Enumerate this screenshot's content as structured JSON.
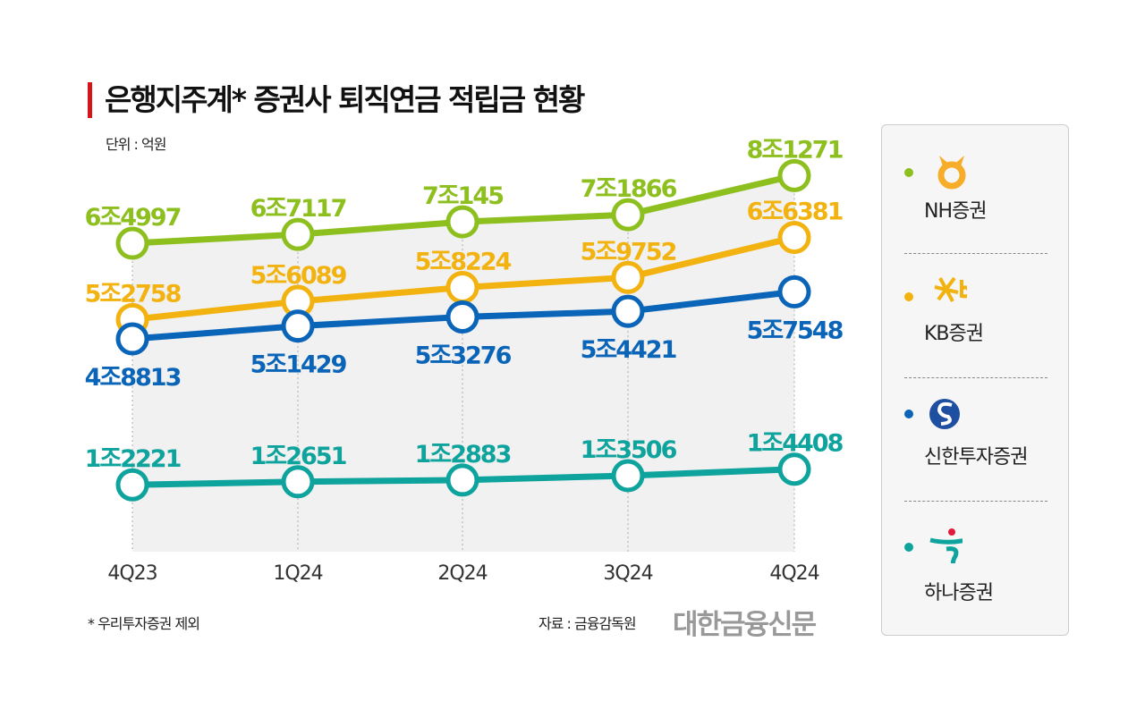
{
  "chart_data": {
    "type": "line",
    "title": "은행지주계* 증권사 퇴직연금 적립금 현황",
    "unit": "단위 : 억원",
    "categories": [
      "4Q23",
      "1Q24",
      "2Q24",
      "3Q24",
      "4Q24"
    ],
    "series": [
      {
        "name": "NH증권",
        "color": "#8dbf1f",
        "values": [
          64997,
          67117,
          70145,
          71866,
          81271
        ],
        "labels": [
          "6조4997",
          "6조7117",
          "7조145",
          "7조1866",
          "8조1271"
        ],
        "label_pos": "above"
      },
      {
        "name": "KB증권",
        "color": "#f2b20f",
        "values": [
          52758,
          56089,
          58224,
          59752,
          66381
        ],
        "labels": [
          "5조2758",
          "5조6089",
          "5조8224",
          "5조9752",
          "6조6381"
        ],
        "label_pos": "above"
      },
      {
        "name": "신한투자증권",
        "color": "#0a64b8",
        "values": [
          48813,
          51429,
          53276,
          54421,
          57548
        ],
        "labels": [
          "4조8813",
          "5조1429",
          "5조3276",
          "5조4421",
          "5조7548"
        ],
        "label_pos": "below"
      },
      {
        "name": "하나증권",
        "color": "#0ea39c",
        "values": [
          12221,
          12651,
          12883,
          13506,
          14408
        ],
        "labels": [
          "1조2221",
          "1조2651",
          "1조2883",
          "1조3506",
          "1조4408"
        ],
        "label_pos": "above"
      }
    ],
    "legend": "right"
  },
  "footnote": "* 우리투자증권 제외",
  "source": "자료 : 금융감독원",
  "brand": "대한금융신문"
}
